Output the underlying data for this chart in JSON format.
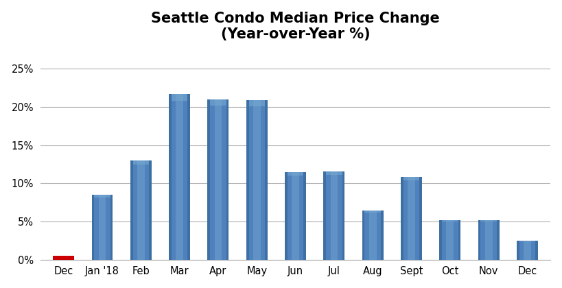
{
  "categories": [
    "Dec",
    "Jan '18",
    "Feb",
    "Mar",
    "Apr",
    "May",
    "Jun",
    "Jul",
    "Aug",
    "Sept",
    "Oct",
    "Nov",
    "Dec"
  ],
  "values": [
    0.005,
    0.085,
    0.13,
    0.217,
    0.21,
    0.209,
    0.115,
    0.116,
    0.064,
    0.108,
    0.052,
    0.052,
    0.025
  ],
  "bar_color_main": "#4F81BD",
  "bar_color_light": "#7BADD3",
  "bar_color_dark": "#2E5F8A",
  "first_bar_color": "#CC0000",
  "title_line1": "Seattle Condo Median Price Change",
  "title_line2": "(Year-over-Year %)",
  "ylim": [
    0,
    0.275
  ],
  "yticks": [
    0.0,
    0.05,
    0.1,
    0.15,
    0.2,
    0.25
  ],
  "ytick_labels": [
    "0%",
    "5%",
    "10%",
    "15%",
    "20%",
    "25%"
  ],
  "background_color": "#FFFFFF",
  "plot_bg_color": "#FFFFFF",
  "grid_color": "#B0B0B0",
  "title_fontsize": 15,
  "tick_fontsize": 10.5,
  "bar_width": 0.55,
  "figsize": [
    8.19,
    4.2
  ],
  "dpi": 100
}
